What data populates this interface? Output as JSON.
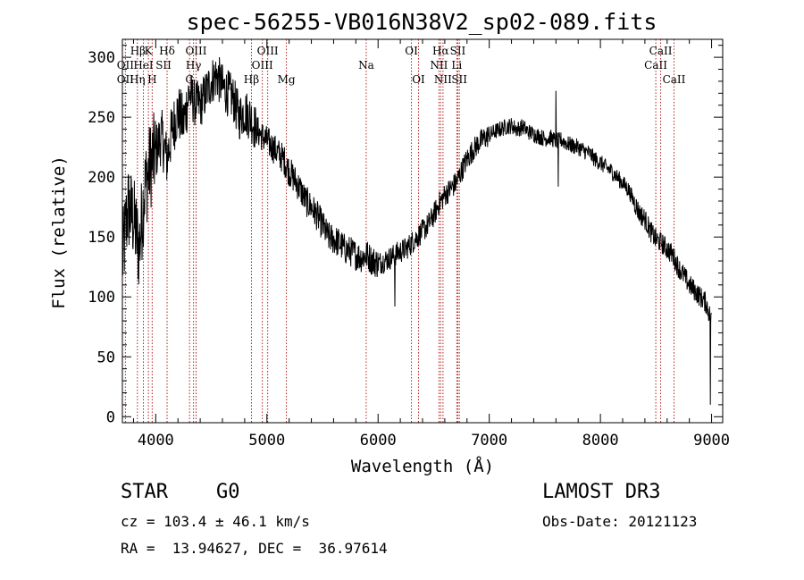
{
  "chart_data": {
    "type": "line",
    "title": "spec-56255-VB016N38V2_sp02-089.fits",
    "xlabel": "Wavelength (Å)",
    "ylabel": "Flux (relative)",
    "xlim": [
      3700,
      9100
    ],
    "ylim": [
      -5,
      315
    ],
    "xticks": [
      4000,
      5000,
      6000,
      7000,
      8000,
      9000
    ],
    "yticks": [
      0,
      50,
      100,
      150,
      200,
      250,
      300
    ],
    "grid": false,
    "series": [
      {
        "name": "flux",
        "x": [
          3700,
          3750,
          3800,
          3850,
          3900,
          3950,
          4000,
          4050,
          4100,
          4150,
          4200,
          4250,
          4300,
          4350,
          4400,
          4450,
          4500,
          4550,
          4600,
          4650,
          4700,
          4750,
          4800,
          4850,
          4900,
          4950,
          5000,
          5050,
          5100,
          5150,
          5200,
          5250,
          5300,
          5350,
          5400,
          5450,
          5500,
          5550,
          5600,
          5650,
          5700,
          5750,
          5800,
          5850,
          5900,
          5950,
          6000,
          6050,
          6100,
          6150,
          6200,
          6250,
          6300,
          6350,
          6400,
          6450,
          6500,
          6550,
          6600,
          6650,
          6700,
          6750,
          6800,
          6850,
          6900,
          6950,
          7000,
          7050,
          7100,
          7150,
          7200,
          7250,
          7300,
          7350,
          7400,
          7450,
          7500,
          7550,
          7600,
          7650,
          7700,
          7750,
          7800,
          7850,
          7900,
          7950,
          8000,
          8050,
          8100,
          8150,
          8200,
          8250,
          8300,
          8350,
          8400,
          8450,
          8500,
          8550,
          8600,
          8650,
          8700,
          8750,
          8800,
          8850,
          8900,
          8950,
          9000
        ],
        "y": [
          130,
          175,
          165,
          140,
          190,
          210,
          220,
          235,
          215,
          240,
          255,
          245,
          270,
          262,
          260,
          270,
          280,
          285,
          275,
          270,
          265,
          250,
          255,
          250,
          240,
          235,
          230,
          225,
          220,
          215,
          205,
          198,
          190,
          180,
          175,
          168,
          160,
          150,
          148,
          145,
          140,
          138,
          135,
          133,
          135,
          130,
          128,
          130,
          132,
          135,
          138,
          140,
          145,
          150,
          155,
          160,
          168,
          178,
          185,
          190,
          195,
          205,
          215,
          222,
          228,
          232,
          235,
          238,
          240,
          242,
          243,
          240,
          242,
          238,
          236,
          234,
          232,
          233,
          230,
          231,
          228,
          226,
          225,
          222,
          220,
          215,
          212,
          208,
          205,
          200,
          195,
          190,
          180,
          170,
          165,
          155,
          148,
          145,
          140,
          135,
          125,
          118,
          110,
          105,
          100,
          95,
          80
        ]
      }
    ],
    "spikes": [
      {
        "x": 7600,
        "y": 272
      },
      {
        "x": 7620,
        "y": 192
      },
      {
        "x": 6150,
        "y": 92
      },
      {
        "x": 8990,
        "y": 10
      }
    ],
    "line_labels": [
      {
        "text": "Hβ",
        "x": 3840,
        "row": 0
      },
      {
        "text": "K",
        "x": 3934,
        "row": 0
      },
      {
        "text": "Hδ",
        "x": 4102,
        "row": 0
      },
      {
        "text": "OIII",
        "x": 4363,
        "row": 0
      },
      {
        "text": "OIII",
        "x": 5007,
        "row": 0
      },
      {
        "text": "OI",
        "x": 6300,
        "row": 0
      },
      {
        "text": "Hα",
        "x": 6563,
        "row": 0
      },
      {
        "text": "SII",
        "x": 6717,
        "row": 0
      },
      {
        "text": "CaII",
        "x": 8542,
        "row": 0
      },
      {
        "text": "OII",
        "x": 3727,
        "row": 1
      },
      {
        "text": "HeI",
        "x": 3889,
        "row": 1
      },
      {
        "text": "SII",
        "x": 4070,
        "row": 1
      },
      {
        "text": "Hγ",
        "x": 4340,
        "row": 1
      },
      {
        "text": "OIII",
        "x": 4959,
        "row": 1
      },
      {
        "text": "Na",
        "x": 5893,
        "row": 1
      },
      {
        "text": "NII",
        "x": 6548,
        "row": 1
      },
      {
        "text": "Li",
        "x": 6708,
        "row": 1
      },
      {
        "text": "CaII",
        "x": 8498,
        "row": 1
      },
      {
        "text": "OII",
        "x": 3727,
        "row": 2
      },
      {
        "text": "Hη",
        "x": 3835,
        "row": 2
      },
      {
        "text": "H",
        "x": 3968,
        "row": 2
      },
      {
        "text": "G",
        "x": 4304,
        "row": 2
      },
      {
        "text": "Hβ",
        "x": 4861,
        "row": 2
      },
      {
        "text": "Mg",
        "x": 5175,
        "row": 2
      },
      {
        "text": "OI",
        "x": 6364,
        "row": 2
      },
      {
        "text": "NII",
        "x": 6584,
        "row": 2
      },
      {
        "text": "SII",
        "x": 6731,
        "row": 2
      },
      {
        "text": "CaII",
        "x": 8662,
        "row": 2
      }
    ],
    "line_positions": [
      3727,
      3835,
      3889,
      3934,
      3968,
      4102,
      4304,
      4340,
      4363,
      4861,
      4959,
      5007,
      5175,
      5893,
      6300,
      6364,
      6548,
      6563,
      6584,
      6708,
      6717,
      6731,
      8498,
      8542,
      8662
    ]
  },
  "info": {
    "class_label": "STAR",
    "subclass": "G0",
    "survey": "LAMOST DR3",
    "cz_line": "cz = 103.4 ± 46.1 km/s",
    "obs_date_line": "Obs-Date: 20121123",
    "coord_line": "RA =  13.94627, DEC =  36.97614"
  },
  "colors": {
    "lines": "#b22222",
    "spectrum": "#000000"
  }
}
